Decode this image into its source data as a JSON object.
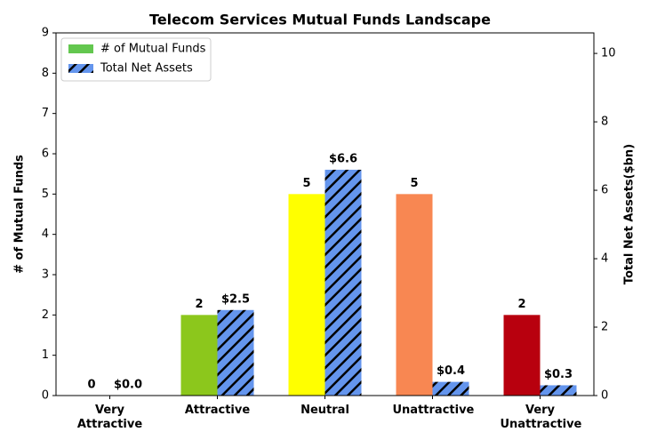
{
  "chart_data": {
    "type": "bar",
    "title": "Telecom Services Mutual Funds Landscape",
    "categories": [
      "Very Attractive",
      "Attractive",
      "Neutral",
      "Unattractive",
      "Very Unattractive"
    ],
    "series": [
      {
        "name": "# of Mutual Funds",
        "color": "#63c74f",
        "colors": [
          "#63c74f",
          "#8cc71c",
          "#ffff00",
          "#f88752",
          "#b8000e"
        ],
        "values": [
          0,
          2,
          5,
          5,
          2
        ]
      },
      {
        "name": "Total Net Assets",
        "color": "#6495ed",
        "hatch": true,
        "axis": "y2",
        "values": [
          0.0,
          2.5,
          6.6,
          0.4,
          0.3
        ],
        "value_labels": [
          "$0.0",
          "$2.5",
          "$6.6",
          "$0.4",
          "$0.3"
        ]
      }
    ],
    "ylabel": "# of Mutual Funds",
    "y2label": "Total Net Assets($bn)",
    "ylim": [
      0,
      9
    ],
    "yticks": [
      0,
      1,
      2,
      3,
      4,
      5,
      6,
      7,
      8,
      9
    ],
    "y2lim": [
      0,
      10.6
    ],
    "y2ticks": [
      0,
      2,
      4,
      6,
      8,
      10
    ],
    "legend": "upper left"
  }
}
